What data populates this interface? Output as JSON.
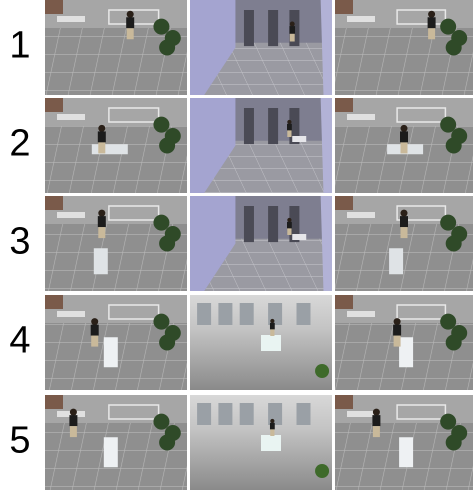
{
  "rows": [
    {
      "label": "1"
    },
    {
      "label": "2"
    },
    {
      "label": "3"
    },
    {
      "label": "4"
    },
    {
      "label": "5"
    }
  ]
}
